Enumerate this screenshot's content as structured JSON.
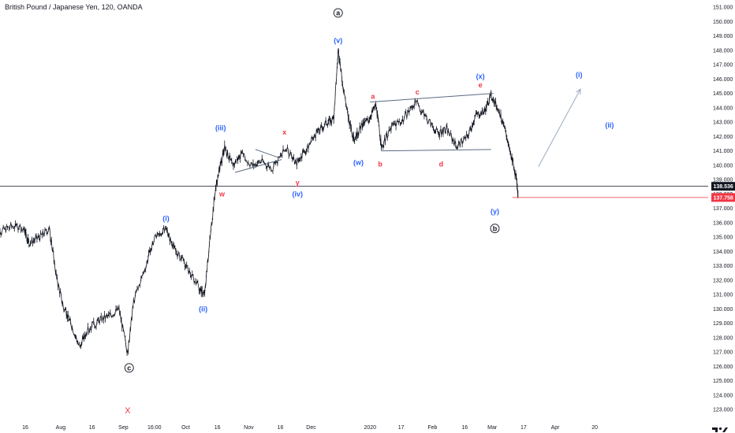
{
  "chart_data": {
    "type": "line",
    "title": "British Pound / Japanese Yen, 120, OANDA",
    "xlim": [
      0,
      24.4
    ],
    "ylim": [
      122.3,
      151.5
    ],
    "y_ticks": [
      123,
      124,
      125,
      126,
      127,
      128,
      129,
      130,
      131,
      132,
      133,
      134,
      135,
      136,
      137,
      138,
      139,
      140,
      141,
      142,
      143,
      144,
      145,
      146,
      147,
      148,
      149,
      150,
      151
    ],
    "y_tick_labels": [
      "123.000",
      "124.000",
      "125.000",
      "126.000",
      "127.000",
      "128.000",
      "129.000",
      "130.000",
      "131.000",
      "132.000",
      "133.000",
      "134.000",
      "135.000",
      "136.000",
      "137.000",
      "138.000",
      "139.000",
      "140.000",
      "141.000",
      "142.000",
      "143.000",
      "144.000",
      "145.000",
      "146.000",
      "147.000",
      "148.000",
      "149.000",
      "150.000",
      "151.000"
    ],
    "x_ticks": [
      {
        "x": 0.87,
        "label": "16"
      },
      {
        "x": 2.09,
        "label": "Aug"
      },
      {
        "x": 3.17,
        "label": "16"
      },
      {
        "x": 4.25,
        "label": "Sep"
      },
      {
        "x": 5.32,
        "label": "16:00"
      },
      {
        "x": 6.4,
        "label": "Oct"
      },
      {
        "x": 7.49,
        "label": "16"
      },
      {
        "x": 8.57,
        "label": "Nov"
      },
      {
        "x": 9.66,
        "label": "16"
      },
      {
        "x": 10.72,
        "label": "Dec"
      },
      {
        "x": 12.75,
        "label": "2020"
      },
      {
        "x": 13.82,
        "label": "17"
      },
      {
        "x": 14.9,
        "label": "Feb"
      },
      {
        "x": 16.01,
        "label": "16"
      },
      {
        "x": 16.96,
        "label": "Mar"
      },
      {
        "x": 18.04,
        "label": "17"
      },
      {
        "x": 19.13,
        "label": "Apr"
      },
      {
        "x": 20.49,
        "label": "20"
      }
    ],
    "price_points": [
      [
        0,
        135.4
      ],
      [
        0.4,
        135.8
      ],
      [
        0.85,
        135.5
      ],
      [
        1.0,
        134.6
      ],
      [
        1.35,
        135.0
      ],
      [
        1.7,
        135.6
      ],
      [
        1.95,
        132.2
      ],
      [
        2.2,
        130.0
      ],
      [
        2.45,
        129.0
      ],
      [
        2.75,
        127.3
      ],
      [
        3.0,
        128.5
      ],
      [
        3.4,
        129.2
      ],
      [
        3.8,
        129.6
      ],
      [
        4.1,
        130.0
      ],
      [
        4.4,
        126.9
      ],
      [
        4.6,
        130.5
      ],
      [
        5.05,
        133.2
      ],
      [
        5.3,
        134.8
      ],
      [
        5.7,
        135.6
      ],
      [
        6.0,
        134.2
      ],
      [
        6.4,
        133.0
      ],
      [
        6.85,
        131.5
      ],
      [
        7.05,
        131.0
      ],
      [
        7.2,
        134.2
      ],
      [
        7.4,
        138.0
      ],
      [
        7.6,
        140.0
      ],
      [
        7.75,
        141.3
      ],
      [
        8.0,
        140.0
      ],
      [
        8.3,
        140.7
      ],
      [
        8.7,
        140.0
      ],
      [
        9.0,
        140.3
      ],
      [
        9.4,
        139.8
      ],
      [
        9.85,
        141.2
      ],
      [
        10.2,
        140.1
      ],
      [
        10.55,
        141.1
      ],
      [
        10.9,
        142.2
      ],
      [
        11.25,
        143.0
      ],
      [
        11.5,
        143.2
      ],
      [
        11.65,
        148.0
      ],
      [
        11.8,
        145.8
      ],
      [
        12.0,
        143.3
      ],
      [
        12.2,
        141.8
      ],
      [
        12.45,
        142.7
      ],
      [
        12.7,
        143.2
      ],
      [
        12.95,
        144.2
      ],
      [
        13.15,
        141.2
      ],
      [
        13.5,
        142.7
      ],
      [
        13.9,
        143.2
      ],
      [
        14.3,
        144.4
      ],
      [
        14.7,
        143.3
      ],
      [
        15.1,
        142.2
      ],
      [
        15.4,
        142.5
      ],
      [
        15.75,
        141.3
      ],
      [
        16.1,
        142.0
      ],
      [
        16.4,
        143.5
      ],
      [
        16.7,
        143.8
      ],
      [
        16.92,
        144.9
      ],
      [
        17.2,
        143.8
      ],
      [
        17.45,
        142.0
      ],
      [
        17.65,
        140.4
      ],
      [
        17.8,
        139.0
      ],
      [
        17.85,
        137.758
      ]
    ],
    "last_price": "138.536",
    "marked_price": "137.758",
    "horizontal_lines": [
      138.536,
      137.758
    ],
    "trendlines": [
      {
        "from": [
          8.1,
          139.5
        ],
        "to": [
          9.7,
          140.4
        ]
      },
      {
        "from": [
          8.8,
          141.1
        ],
        "to": [
          9.65,
          140.5
        ]
      },
      {
        "from": [
          12.75,
          144.4
        ],
        "to": [
          17.0,
          145.0
        ]
      },
      {
        "from": [
          13.15,
          141.0
        ],
        "to": [
          16.92,
          141.1
        ]
      }
    ],
    "arrow": {
      "from": [
        18.55,
        139.9
      ],
      "to": [
        20.0,
        145.3
      ]
    },
    "annotations": [
      {
        "text": "a",
        "x": 11.65,
        "y": 150.6,
        "color": "#131722",
        "circle": true
      },
      {
        "text": "(v)",
        "x": 11.65,
        "y": 148.7,
        "color": "#2962ff"
      },
      {
        "text": "(iii)",
        "x": 7.6,
        "y": 142.6,
        "color": "#2962ff"
      },
      {
        "text": "x",
        "x": 9.8,
        "y": 142.3,
        "color": "#f23645"
      },
      {
        "text": "w",
        "x": 7.65,
        "y": 138.0,
        "color": "#f23645"
      },
      {
        "text": "y",
        "x": 10.25,
        "y": 138.8,
        "color": "#f23645"
      },
      {
        "text": "(iv)",
        "x": 10.25,
        "y": 138.0,
        "color": "#2962ff"
      },
      {
        "text": "(i)",
        "x": 5.72,
        "y": 136.3,
        "color": "#2962ff"
      },
      {
        "text": "(ii)",
        "x": 7.0,
        "y": 130.0,
        "color": "#2962ff"
      },
      {
        "text": "c",
        "x": 4.45,
        "y": 125.9,
        "color": "#131722",
        "circle": true
      },
      {
        "text": "X",
        "x": 4.4,
        "y": 122.9,
        "color": "#f23645"
      },
      {
        "text": "a",
        "x": 12.85,
        "y": 144.8,
        "color": "#f23645"
      },
      {
        "text": "c",
        "x": 14.38,
        "y": 145.1,
        "color": "#f23645"
      },
      {
        "text": "(x)",
        "x": 16.55,
        "y": 146.2,
        "color": "#2962ff"
      },
      {
        "text": "e",
        "x": 16.55,
        "y": 145.6,
        "color": "#f23645"
      },
      {
        "text": "(w)",
        "x": 12.35,
        "y": 140.2,
        "color": "#2962ff"
      },
      {
        "text": "b",
        "x": 13.1,
        "y": 140.1,
        "color": "#f23645"
      },
      {
        "text": "d",
        "x": 15.2,
        "y": 140.1,
        "color": "#f23645"
      },
      {
        "text": "(y)",
        "x": 17.05,
        "y": 136.8,
        "color": "#2962ff"
      },
      {
        "text": "b",
        "x": 17.05,
        "y": 135.6,
        "color": "#131722",
        "circle": true
      },
      {
        "text": "(i)",
        "x": 19.95,
        "y": 146.3,
        "color": "#2962ff"
      },
      {
        "text": "(ii)",
        "x": 21.0,
        "y": 142.8,
        "color": "#2962ff"
      }
    ],
    "colors": {
      "price": "#131722",
      "annotation_blue": "#2962ff",
      "annotation_red": "#f23645",
      "trendline": "#5b6b80",
      "arrow": "#9aa9bf",
      "axis_text": "#131722",
      "price_tag_dark": "#131722",
      "price_tag_red": "#f23645"
    },
    "grid": false
  }
}
